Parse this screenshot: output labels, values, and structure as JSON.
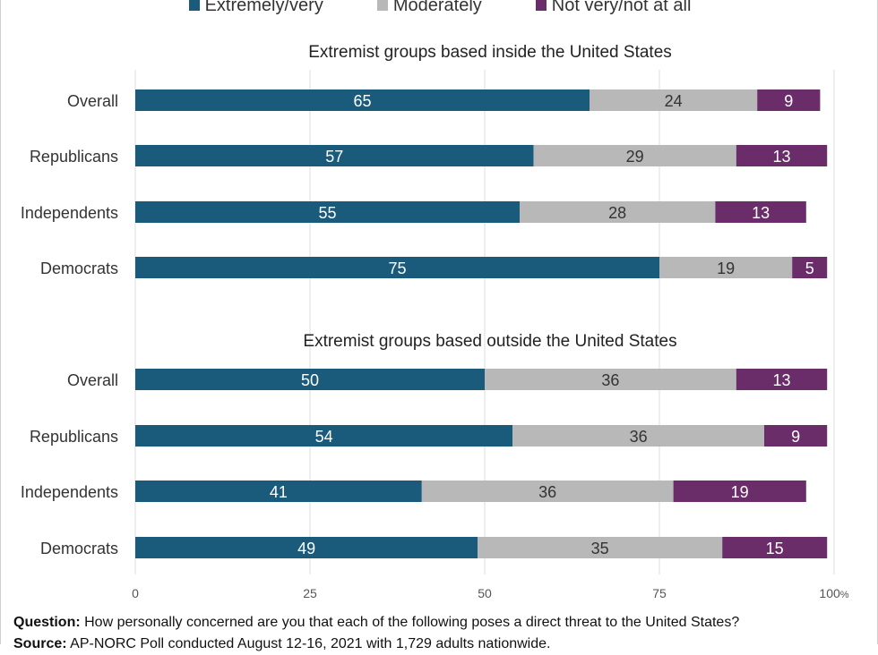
{
  "legend": [
    {
      "label": "Extremely/very",
      "color": "#1a5b7c"
    },
    {
      "label": "Moderately",
      "color": "#b8b8b8"
    },
    {
      "label": "Not very/not at all",
      "color": "#6b2c6a"
    }
  ],
  "chart_data": {
    "type": "bar",
    "orientation": "horizontal",
    "stacked": true,
    "xlim": [
      0,
      100
    ],
    "xticks": [
      0,
      25,
      50,
      75,
      100
    ],
    "xtick_suffix": "%",
    "grid": true,
    "legend_position": "top",
    "series_names": [
      "Extremely/very",
      "Moderately",
      "Not very/not at all"
    ],
    "panels": [
      {
        "title": "Extremist groups based inside the United States",
        "categories": [
          "Overall",
          "Republicans",
          "Independents",
          "Democrats"
        ],
        "series": [
          {
            "name": "Extremely/very",
            "values": [
              65,
              57,
              55,
              75
            ]
          },
          {
            "name": "Moderately",
            "values": [
              24,
              29,
              28,
              19
            ]
          },
          {
            "name": "Not very/not at all",
            "values": [
              9,
              13,
              13,
              5
            ]
          }
        ]
      },
      {
        "title": "Extremist groups based outside the United States",
        "categories": [
          "Overall",
          "Republicans",
          "Independents",
          "Democrats"
        ],
        "series": [
          {
            "name": "Extremely/very",
            "values": [
              50,
              54,
              41,
              49
            ]
          },
          {
            "name": "Moderately",
            "values": [
              36,
              36,
              36,
              35
            ]
          },
          {
            "name": "Not very/not at all",
            "values": [
              13,
              9,
              19,
              15
            ]
          }
        ]
      }
    ]
  },
  "footer": {
    "question_label": "Question:",
    "question_text": "How personally concerned are you that each of the following poses a direct threat to the United States?",
    "source_label": "Source:",
    "source_text": "AP-NORC Poll conducted August 12-16, 2021 with 1,729 adults nationwide."
  }
}
